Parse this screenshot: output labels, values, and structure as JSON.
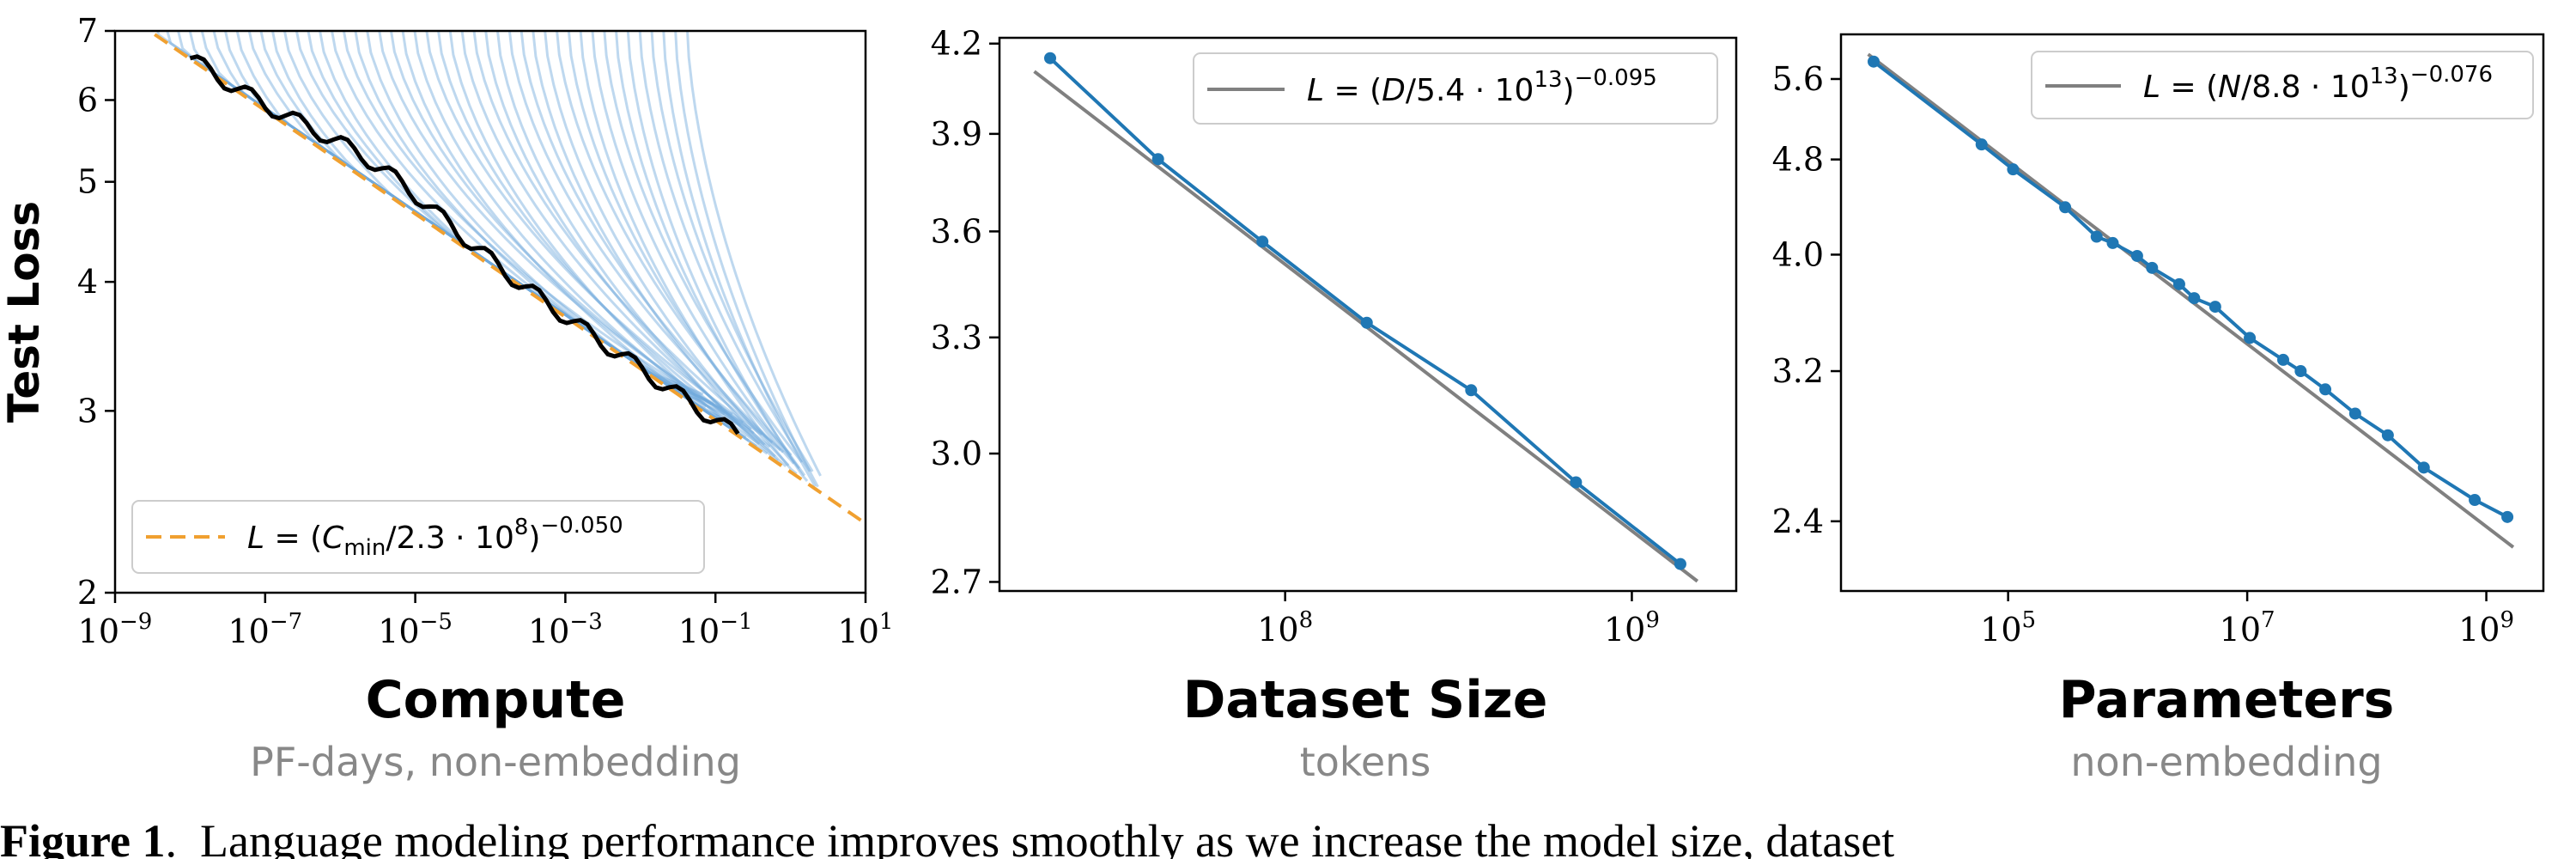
{
  "chart_data": [
    {
      "type": "line",
      "xlabel": "Compute",
      "xsublabel": "PF-days, non-embedding",
      "ylabel": "Test Loss",
      "xscale": "log",
      "yscale": "log",
      "xlim": [
        1e-09,
        10
      ],
      "ylim": [
        2,
        7
      ],
      "xticks": [
        1e-09,
        1e-07,
        1e-05,
        0.001,
        0.1,
        10
      ],
      "xtick_labels": [
        {
          "base": "10",
          "exp": "−9"
        },
        {
          "base": "10",
          "exp": "−7"
        },
        {
          "base": "10",
          "exp": "−5"
        },
        {
          "base": "10",
          "exp": "−3"
        },
        {
          "base": "10",
          "exp": "−1"
        },
        {
          "base": "10",
          "exp": "1"
        }
      ],
      "yticks": [
        2,
        3,
        4,
        5,
        6,
        7
      ],
      "ytick_labels": [
        "2",
        "3",
        "4",
        "5",
        "6",
        "7"
      ],
      "fit": {
        "label": "L = (C_min/2.3 · 10^8)^−0.050",
        "scale": 230000000.0,
        "exponent": -0.05,
        "color": "#f0a030",
        "style": "dashed"
      },
      "frontier_color": "#000000",
      "curves_color": "#6fa8dc",
      "legend_position": "lower-left",
      "grid": false
    },
    {
      "type": "line",
      "xlabel": "Dataset Size",
      "xsublabel": "tokens",
      "xscale": "log",
      "yscale": "log",
      "xlim": [
        15000000.0,
        2000000000.0
      ],
      "ylim": [
        2.68,
        4.22
      ],
      "xticks": [
        100000000.0,
        1000000000.0
      ],
      "xtick_labels": [
        {
          "base": "10",
          "exp": "8"
        },
        {
          "base": "10",
          "exp": "9"
        }
      ],
      "yticks": [
        2.7,
        3.0,
        3.3,
        3.6,
        3.9,
        4.2
      ],
      "ytick_labels": [
        "2.7",
        "3.0",
        "3.3",
        "3.6",
        "3.9",
        "4.2"
      ],
      "series": [
        {
          "x": [
            21000000.0,
            43000000.0,
            86000000.0,
            172000000.0,
            344000000.0,
            690000000.0,
            1380000000.0
          ],
          "y": [
            4.15,
            3.82,
            3.57,
            3.34,
            3.16,
            2.93,
            2.74
          ]
        }
      ],
      "fit": {
        "label": "L = (D/5.4 · 10^13)^−0.095",
        "scale": 54000000000000.0,
        "exponent": -0.095,
        "color": "#808080"
      },
      "series_color": "#1f77b4",
      "legend_position": "upper-right",
      "grid": false
    },
    {
      "type": "line",
      "xlabel": "Parameters",
      "xsublabel": "non-embedding",
      "xscale": "log",
      "yscale": "log",
      "xlim": [
        4000.0,
        3000000000.0
      ],
      "ylim": [
        2.1,
        6.1
      ],
      "xticks": [
        100000.0,
        10000000.0,
        1000000000.0
      ],
      "xtick_labels": [
        {
          "base": "10",
          "exp": "5"
        },
        {
          "base": "10",
          "exp": "7"
        },
        {
          "base": "10",
          "exp": "9"
        }
      ],
      "yticks": [
        2.4,
        3.2,
        4.0,
        4.8,
        5.6
      ],
      "ytick_labels": [
        "2.4",
        "3.2",
        "4.0",
        "4.8",
        "5.6"
      ],
      "series": [
        {
          "x": [
            7500.0,
            60000.0,
            110000.0,
            300000.0,
            550000.0,
            750000.0,
            1200000.0,
            1600000.0,
            2700000.0,
            3600000.0,
            5400000.0,
            10500000.0,
            20000000.0,
            28000000.0,
            45000000.0,
            80000000.0,
            150000000.0,
            300000000.0,
            800000000.0,
            1500000000.0
          ],
          "y": [
            5.79,
            4.94,
            4.71,
            4.38,
            4.14,
            4.09,
            3.99,
            3.9,
            3.78,
            3.68,
            3.62,
            3.41,
            3.27,
            3.2,
            3.09,
            2.95,
            2.83,
            2.66,
            2.5,
            2.42
          ]
        }
      ],
      "fit": {
        "label": "L = (N/8.8 · 10^13)^−0.076",
        "scale": 88000000000000.0,
        "exponent": -0.076,
        "color": "#808080"
      },
      "series_color": "#1f77b4",
      "legend_position": "upper-right",
      "grid": false
    }
  ],
  "caption": {
    "bold": "Figure 1",
    "text": "Language modeling performance improves smoothly as we increase the model size, dataset"
  }
}
